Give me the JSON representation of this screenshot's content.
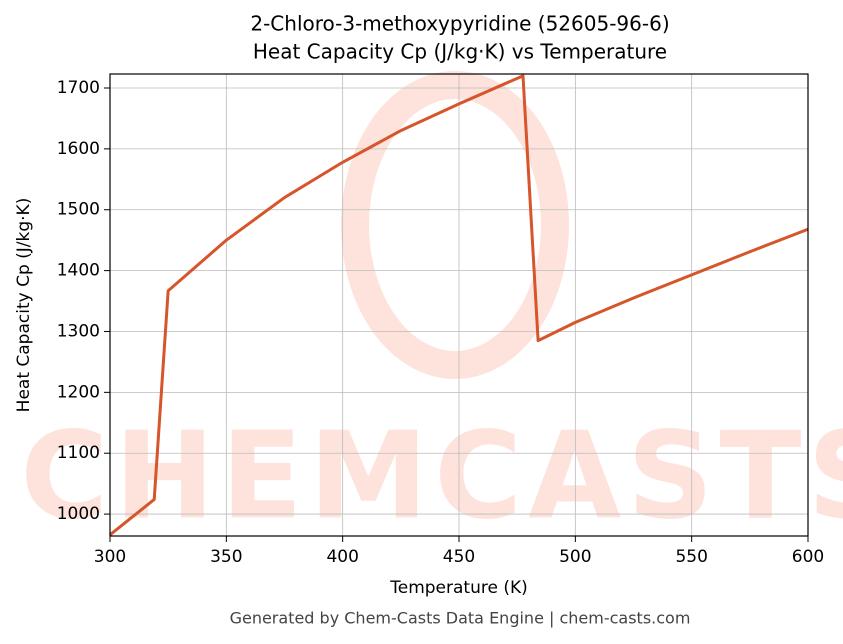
{
  "chart_data": {
    "type": "line",
    "title": "2-Chloro-3-methoxypyridine (52605-96-6)",
    "subtitle": "Heat Capacity Cp (J/kg·K) vs Temperature",
    "x_label": "Temperature (K)",
    "y_label": "Heat Capacity Cp (J/kg·K)",
    "watermark": "CHEMCASTS",
    "footer": "Generated by Chem-Casts Data Engine | chem-casts.com",
    "x": [
      300,
      319,
      325,
      350,
      375,
      400,
      425,
      450,
      477.5,
      484,
      500,
      525,
      550,
      575,
      600
    ],
    "series": [
      {
        "name": "Cp",
        "color": "#d6552a",
        "values": [
          966,
          1024,
          1367,
          1450,
          1520,
          1578,
          1630,
          1674,
          1720,
          1285,
          1315,
          1355,
          1393,
          1431,
          1468
        ]
      }
    ],
    "xlim": [
      300,
      600
    ],
    "xticks": [
      300,
      350,
      400,
      450,
      500,
      550,
      600
    ],
    "ylim": [
      964,
      1723
    ],
    "yticks": [
      1000,
      1100,
      1200,
      1300,
      1400,
      1500,
      1600,
      1700
    ],
    "grid": true
  }
}
